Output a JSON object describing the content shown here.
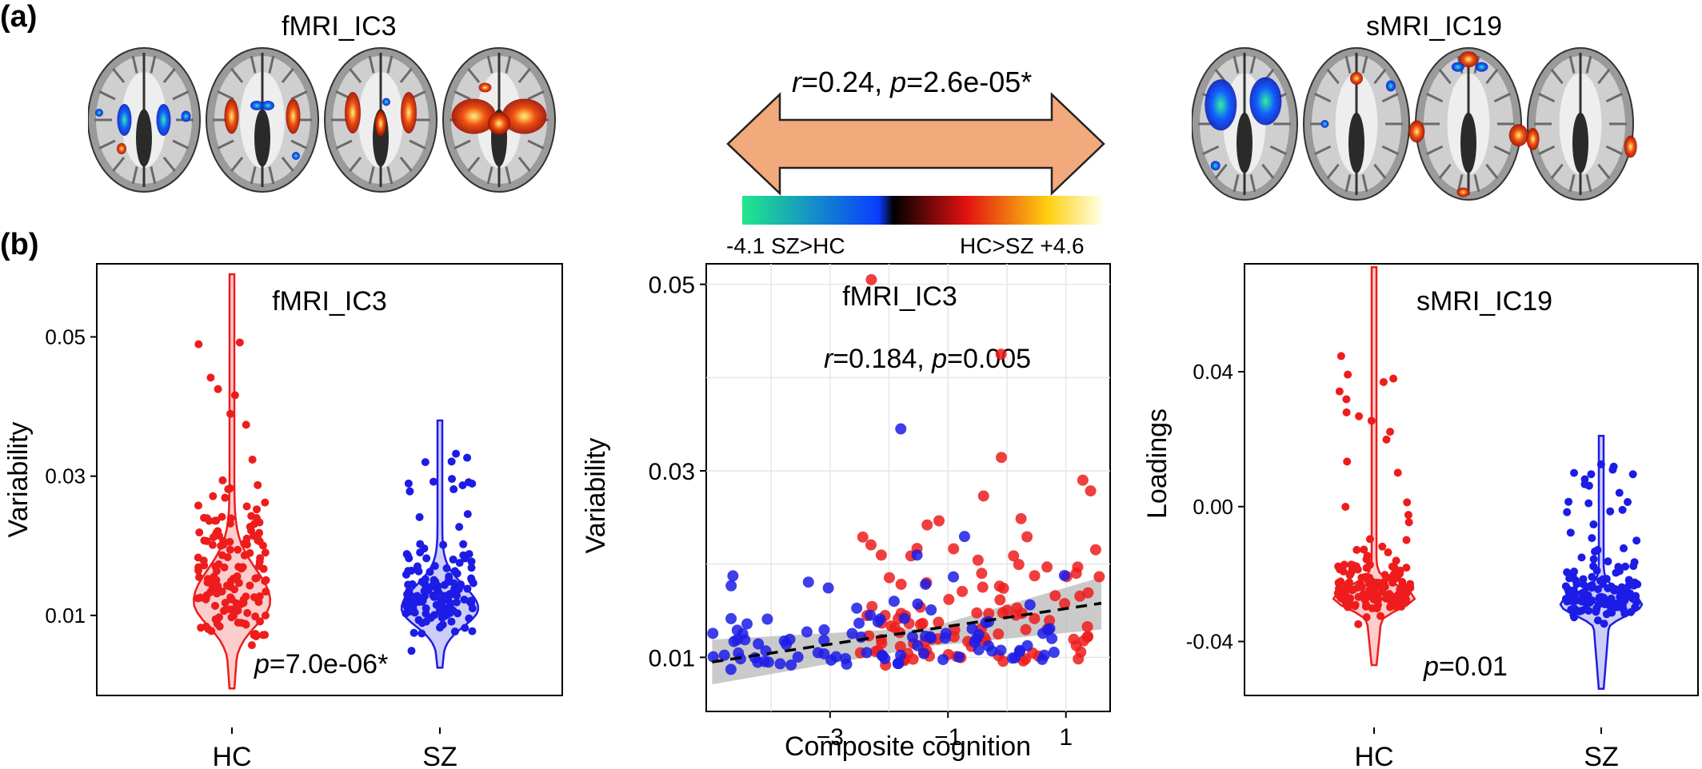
{
  "panel_a": {
    "letter": "(a)",
    "left_title": "fMRI_IC3",
    "right_title": "sMRI_IC19",
    "stat_prefix": "r",
    "stat_rest": "=0.24, ",
    "stat_p": "p",
    "stat_p_rest": "=2.6e-05*",
    "colorbar": {
      "left_label": "-4.1 SZ>HC",
      "right_label": "HC>SZ +4.6",
      "colors": [
        "#21e88a",
        "#0a3cff",
        "#000000",
        "#e01010",
        "#ffd010",
        "#ffffe8"
      ]
    },
    "arrow_color": "#f2a97c"
  },
  "panel_b": {
    "letter": "(b)"
  },
  "colors": {
    "hc": "#ee1c1c",
    "sz": "#1c1ce6"
  },
  "chart_data": [
    {
      "type": "violin",
      "title": "fMRI_IC3",
      "ylabel": "Variability",
      "categories": [
        "HC",
        "SZ"
      ],
      "yticks": [
        "0.01",
        "0.03",
        "0.05"
      ],
      "ylim": [
        -0.0015,
        0.0605
      ],
      "annotation": {
        "p": "p",
        "text": "=7.0e-06*"
      },
      "series": [
        {
          "name": "HC",
          "min": -0.0005,
          "max": 0.059,
          "median": 0.012,
          "n": 150
        },
        {
          "name": "SZ",
          "min": 0.0025,
          "max": 0.038,
          "median": 0.011,
          "n": 150
        }
      ]
    },
    {
      "type": "scatter",
      "title": "fMRI_IC3",
      "ylabel": "Variability",
      "xlabel": "Composite cognition",
      "xticks": [
        "−3",
        "−1",
        "1"
      ],
      "yticks": [
        "0.01",
        "0.03",
        "0.05"
      ],
      "xlim": [
        -5.1,
        1.75
      ],
      "ylim": [
        0.0042,
        0.0522
      ],
      "annotation": {
        "r": "r",
        "r_text": "=0.184, ",
        "p": "p",
        "p_text": "=0.005"
      },
      "trend": {
        "x0": -5.0,
        "y0": 0.0095,
        "x1": 1.6,
        "y1": 0.0158
      },
      "series": [
        {
          "name": "HC",
          "x_range": [
            -2.5,
            1.6
          ],
          "n": 110
        },
        {
          "name": "SZ",
          "x_range": [
            -5.0,
            1.0
          ],
          "n": 95
        }
      ]
    },
    {
      "type": "violin",
      "title": "sMRI_IC19",
      "ylabel": "Loadings",
      "categories": [
        "HC",
        "SZ"
      ],
      "yticks": [
        "-0.04",
        "0.00",
        "0.04"
      ],
      "ylim": [
        -0.056,
        0.072
      ],
      "annotation": {
        "p": "p",
        "text": "=0.01"
      },
      "series": [
        {
          "name": "HC",
          "min": -0.047,
          "max": 0.071,
          "median": -0.027,
          "n": 150
        },
        {
          "name": "SZ",
          "min": -0.054,
          "max": 0.021,
          "median": -0.029,
          "n": 150
        }
      ]
    }
  ]
}
